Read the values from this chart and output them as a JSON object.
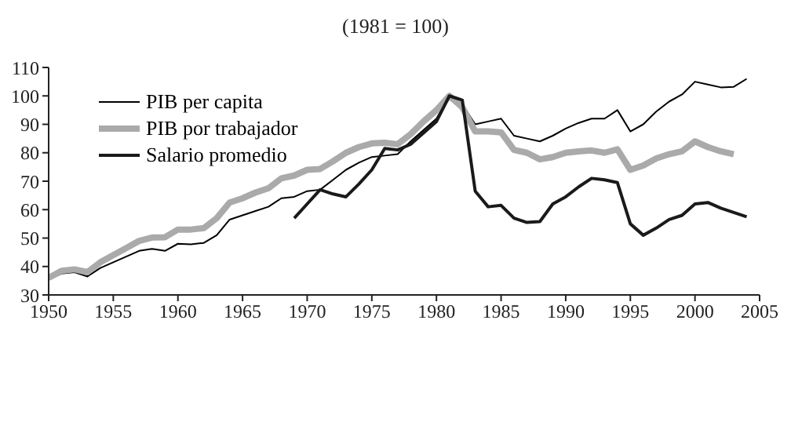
{
  "chart_data": {
    "type": "line",
    "title": "(1981 = 100)",
    "x": [
      1950,
      1951,
      1952,
      1953,
      1954,
      1955,
      1956,
      1957,
      1958,
      1959,
      1960,
      1961,
      1962,
      1963,
      1964,
      1965,
      1966,
      1967,
      1968,
      1969,
      1970,
      1971,
      1972,
      1973,
      1974,
      1975,
      1976,
      1977,
      1978,
      1979,
      1980,
      1981,
      1982,
      1983,
      1984,
      1985,
      1986,
      1987,
      1988,
      1989,
      1990,
      1991,
      1992,
      1993,
      1994,
      1995,
      1996,
      1997,
      1998,
      1999,
      2000,
      2001,
      2002,
      2003,
      2004
    ],
    "series": [
      {
        "name": "PIB per capita",
        "color": "#000000",
        "values": [
          35.5,
          37.5,
          38,
          36.5,
          39.5,
          41.5,
          43.5,
          45.5,
          46.2,
          45.5,
          48,
          47.8,
          48.3,
          51,
          56.5,
          58,
          59.5,
          61,
          64,
          64.5,
          66.5,
          67,
          70.5,
          74,
          76.5,
          78.5,
          79,
          79.5,
          84,
          88,
          92,
          100,
          97,
          90,
          91,
          92,
          86,
          85,
          84,
          86,
          88.5,
          90.5,
          92,
          92,
          95,
          87.5,
          90,
          94.5,
          98,
          100.5,
          105,
          104,
          103,
          103.2,
          106
        ]
      },
      {
        "name": "PIB por trabajador",
        "color": "#aaaaaa",
        "values": [
          36,
          38.5,
          39,
          38,
          41.5,
          44,
          46.5,
          49,
          50.2,
          50.3,
          53,
          53,
          53.5,
          57,
          62.5,
          64,
          66,
          67.5,
          71,
          72,
          74,
          74.3,
          77,
          80,
          82,
          83.3,
          83.5,
          83,
          86.5,
          91,
          95,
          100,
          96,
          87.5,
          87.5,
          87.2,
          81,
          80,
          77.7,
          78.5,
          80,
          80.5,
          80.8,
          80,
          81.2,
          74,
          75.5,
          78,
          79.5,
          80.5,
          84,
          82,
          80.5,
          79.5,
          null
        ]
      },
      {
        "name": "Salario promedio",
        "color": "#1a1a1a",
        "values": [
          null,
          null,
          null,
          null,
          null,
          null,
          null,
          null,
          null,
          null,
          null,
          null,
          null,
          null,
          null,
          null,
          null,
          null,
          null,
          57,
          62,
          67,
          65.5,
          64.5,
          69,
          74,
          81.5,
          81,
          83,
          87,
          91,
          100,
          98.5,
          66.5,
          61,
          61.5,
          57,
          55.5,
          55.8,
          62,
          64.5,
          68,
          71,
          70.5,
          69.5,
          55,
          51,
          53.5,
          56.5,
          58,
          62,
          62.5,
          60.5,
          59,
          57.5
        ]
      }
    ],
    "xlim": [
      1950,
      2005
    ],
    "xticks": [
      1950,
      1955,
      1960,
      1965,
      1970,
      1975,
      1980,
      1985,
      1990,
      1995,
      2000,
      2005
    ],
    "ylim": [
      30,
      110
    ],
    "yticks": [
      30,
      40,
      50,
      60,
      70,
      80,
      90,
      100,
      110
    ],
    "grid": false,
    "legend": "top left",
    "marker": "none",
    "line_style": "solid"
  }
}
